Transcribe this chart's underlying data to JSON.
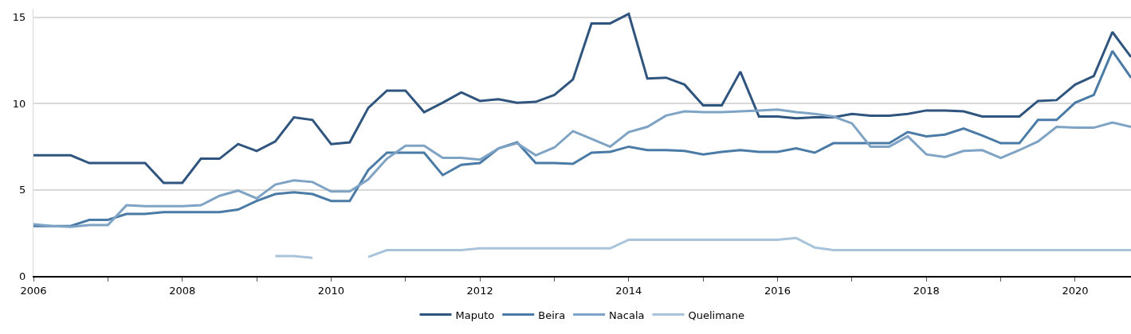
{
  "chart_data": {
    "type": "line",
    "x": [
      2006,
      2006.25,
      2006.5,
      2006.75,
      2007,
      2007.25,
      2007.5,
      2007.75,
      2008,
      2008.25,
      2008.5,
      2008.75,
      2009,
      2009.25,
      2009.5,
      2009.75,
      2010,
      2010.25,
      2010.5,
      2010.75,
      2011,
      2011.25,
      2011.5,
      2011.75,
      2012,
      2012.25,
      2012.5,
      2012.75,
      2013,
      2013.25,
      2013.5,
      2013.75,
      2014,
      2014.25,
      2014.5,
      2014.75,
      2015,
      2015.25,
      2015.5,
      2015.75,
      2016,
      2016.25,
      2016.5,
      2016.75,
      2017,
      2017.25,
      2017.5,
      2017.75,
      2018,
      2018.25,
      2018.5,
      2018.75,
      2019,
      2019.25,
      2019.5,
      2019.75,
      2020,
      2020.25,
      2020.5,
      2020.75
    ],
    "series": [
      {
        "name": "Maputo",
        "color": "#2f557f",
        "values": [
          7.0,
          7.0,
          7.0,
          6.55,
          6.55,
          6.55,
          6.55,
          5.4,
          5.4,
          6.8,
          6.8,
          7.65,
          7.25,
          7.8,
          9.2,
          9.05,
          7.65,
          7.75,
          9.75,
          10.75,
          10.75,
          9.5,
          10.05,
          10.65,
          10.15,
          10.25,
          10.05,
          10.1,
          10.5,
          11.4,
          14.65,
          14.65,
          15.2,
          11.45,
          11.5,
          11.1,
          9.9,
          9.9,
          11.85,
          9.25,
          9.25,
          9.15,
          9.2,
          9.2,
          9.4,
          9.3,
          9.3,
          9.4,
          9.6,
          9.6,
          9.55,
          9.25,
          9.25,
          9.25,
          10.15,
          10.2,
          11.1,
          11.6,
          14.15,
          12.7
        ]
      },
      {
        "name": "Beira",
        "color": "#4a7ba6",
        "values": [
          2.9,
          2.9,
          2.9,
          3.25,
          3.25,
          3.6,
          3.6,
          3.7,
          3.7,
          3.7,
          3.7,
          3.85,
          4.35,
          4.75,
          4.85,
          4.75,
          4.35,
          4.35,
          6.15,
          7.15,
          7.15,
          7.15,
          5.85,
          6.45,
          6.55,
          7.4,
          7.75,
          6.55,
          6.55,
          6.5,
          7.15,
          7.2,
          7.5,
          7.3,
          7.3,
          7.25,
          7.05,
          7.2,
          7.3,
          7.2,
          7.2,
          7.4,
          7.15,
          7.7,
          7.7,
          7.7,
          7.7,
          8.35,
          8.1,
          8.2,
          8.55,
          8.15,
          7.7,
          7.7,
          9.05,
          9.05,
          10.05,
          10.5,
          13.05,
          11.5
        ]
      },
      {
        "name": "Nacala",
        "color": "#7fa3c4",
        "values": [
          3.0,
          2.9,
          2.85,
          2.95,
          2.95,
          4.1,
          4.05,
          4.05,
          4.05,
          4.1,
          4.65,
          4.95,
          4.5,
          5.3,
          5.55,
          5.45,
          4.9,
          4.9,
          5.6,
          6.8,
          7.55,
          7.55,
          6.85,
          6.85,
          6.75,
          7.4,
          7.7,
          7.0,
          7.45,
          8.4,
          7.95,
          7.5,
          8.35,
          8.65,
          9.3,
          9.55,
          9.5,
          9.5,
          9.55,
          9.6,
          9.65,
          9.5,
          9.4,
          9.25,
          8.85,
          7.5,
          7.5,
          8.1,
          7.05,
          6.9,
          7.25,
          7.3,
          6.85,
          7.3,
          7.8,
          8.65,
          8.6,
          8.6,
          8.9,
          8.65
        ]
      },
      {
        "name": "Quelimane",
        "color": "#a9c3db",
        "values": [
          null,
          null,
          null,
          null,
          null,
          null,
          null,
          null,
          null,
          null,
          null,
          null,
          null,
          1.15,
          1.15,
          1.05,
          null,
          null,
          1.1,
          1.5,
          1.5,
          1.5,
          1.5,
          1.5,
          1.6,
          1.6,
          1.6,
          1.6,
          1.6,
          1.6,
          1.6,
          1.6,
          2.1,
          2.1,
          2.1,
          2.1,
          2.1,
          2.1,
          2.1,
          2.1,
          2.1,
          2.2,
          1.65,
          1.5,
          1.5,
          1.5,
          1.5,
          1.5,
          1.5,
          1.5,
          1.5,
          1.5,
          1.5,
          1.5,
          1.5,
          1.5,
          1.5,
          1.5,
          1.5,
          1.5
        ]
      }
    ],
    "xlim": [
      2006,
      2020.75
    ],
    "xticks": [
      2006,
      {
        "value": 2007,
        "label": null
      },
      2008,
      {
        "value": 2009,
        "label": null
      },
      2010,
      {
        "value": 2011,
        "label": null
      },
      2012,
      {
        "value": 2013,
        "label": null
      },
      2014,
      {
        "value": 2015,
        "label": null
      },
      2016,
      {
        "value": 2017,
        "label": null
      },
      2018,
      {
        "value": 2019,
        "label": null
      },
      2020
    ],
    "ylim": [
      0,
      15.5
    ],
    "yticks": [
      0,
      5,
      10,
      15
    ],
    "grid": "y",
    "legend": "bottom",
    "marker": "none",
    "line_style": "solid"
  }
}
